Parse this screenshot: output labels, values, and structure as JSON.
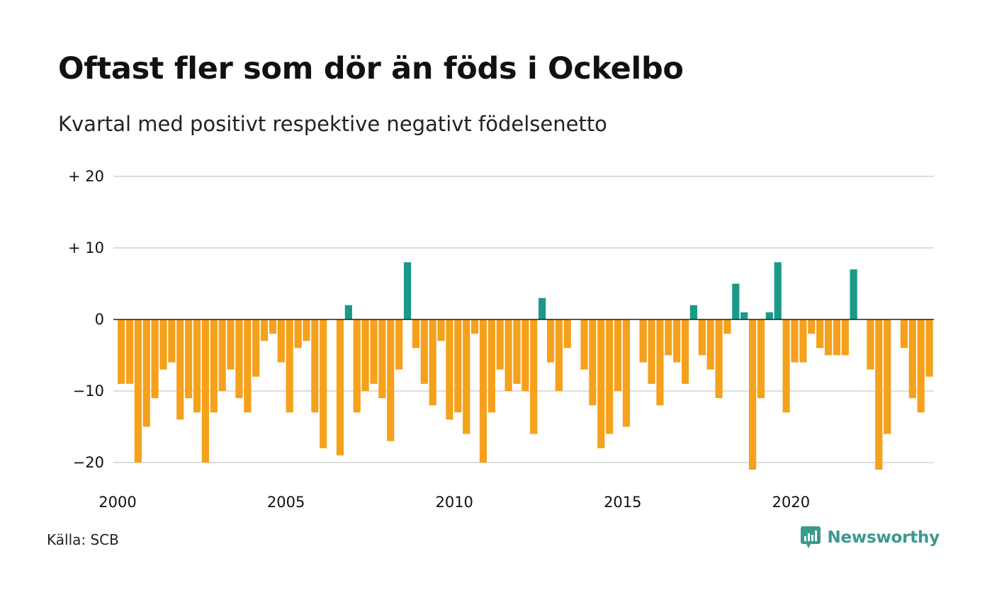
{
  "title": "Oftast fler som dör än föds i Ockelbo",
  "subtitle": "Kvartal med positivt respektive negativt födelsenetto",
  "source": "Källa: SCB",
  "brand": "Newsworthy",
  "colors": {
    "positive": "#1a9988",
    "negative": "#f5a11c",
    "grid": "#dddddd",
    "zero": "#222222",
    "brand": "#3a9a8e"
  },
  "chart_data": {
    "type": "bar",
    "x_start": 2000,
    "x_step": 0.25,
    "ylim": [
      -23,
      20
    ],
    "y_ticks": [
      {
        "value": 20,
        "label": "+ 20"
      },
      {
        "value": 10,
        "label": "+ 10"
      },
      {
        "value": 0,
        "label": "0"
      },
      {
        "value": -10,
        "label": "−10"
      },
      {
        "value": -20,
        "label": "−20"
      }
    ],
    "x_ticks": [
      {
        "value": 2000,
        "label": "2000"
      },
      {
        "value": 2005,
        "label": "2005"
      },
      {
        "value": 2010,
        "label": "2010"
      },
      {
        "value": 2015,
        "label": "2015"
      },
      {
        "value": 2020,
        "label": "2020"
      }
    ],
    "grid": true,
    "legend": "none",
    "values": [
      -9,
      -9,
      -20,
      -15,
      -11,
      -7,
      -6,
      -14,
      -11,
      -13,
      -20,
      -13,
      -10,
      -7,
      -11,
      -13,
      -8,
      -3,
      -2,
      -6,
      -13,
      -4,
      -3,
      -13,
      -18,
      0,
      -19,
      2,
      -13,
      -10,
      -9,
      -11,
      -17,
      -7,
      8,
      -4,
      -9,
      -12,
      -3,
      -14,
      -13,
      -16,
      -2,
      -20,
      -13,
      -7,
      -10,
      -9,
      -10,
      -16,
      3,
      -6,
      -10,
      -4,
      0,
      -7,
      -12,
      -18,
      -16,
      -10,
      -15,
      0,
      -6,
      -9,
      -12,
      -5,
      -6,
      -9,
      2,
      -5,
      -7,
      -11,
      -2,
      5,
      1,
      -21,
      -11,
      1,
      8,
      -13,
      -6,
      -6,
      -2,
      -4,
      -5,
      -5,
      -5,
      7,
      0,
      -7,
      -21,
      -16,
      0,
      -4,
      -11,
      -13,
      -8
    ]
  }
}
